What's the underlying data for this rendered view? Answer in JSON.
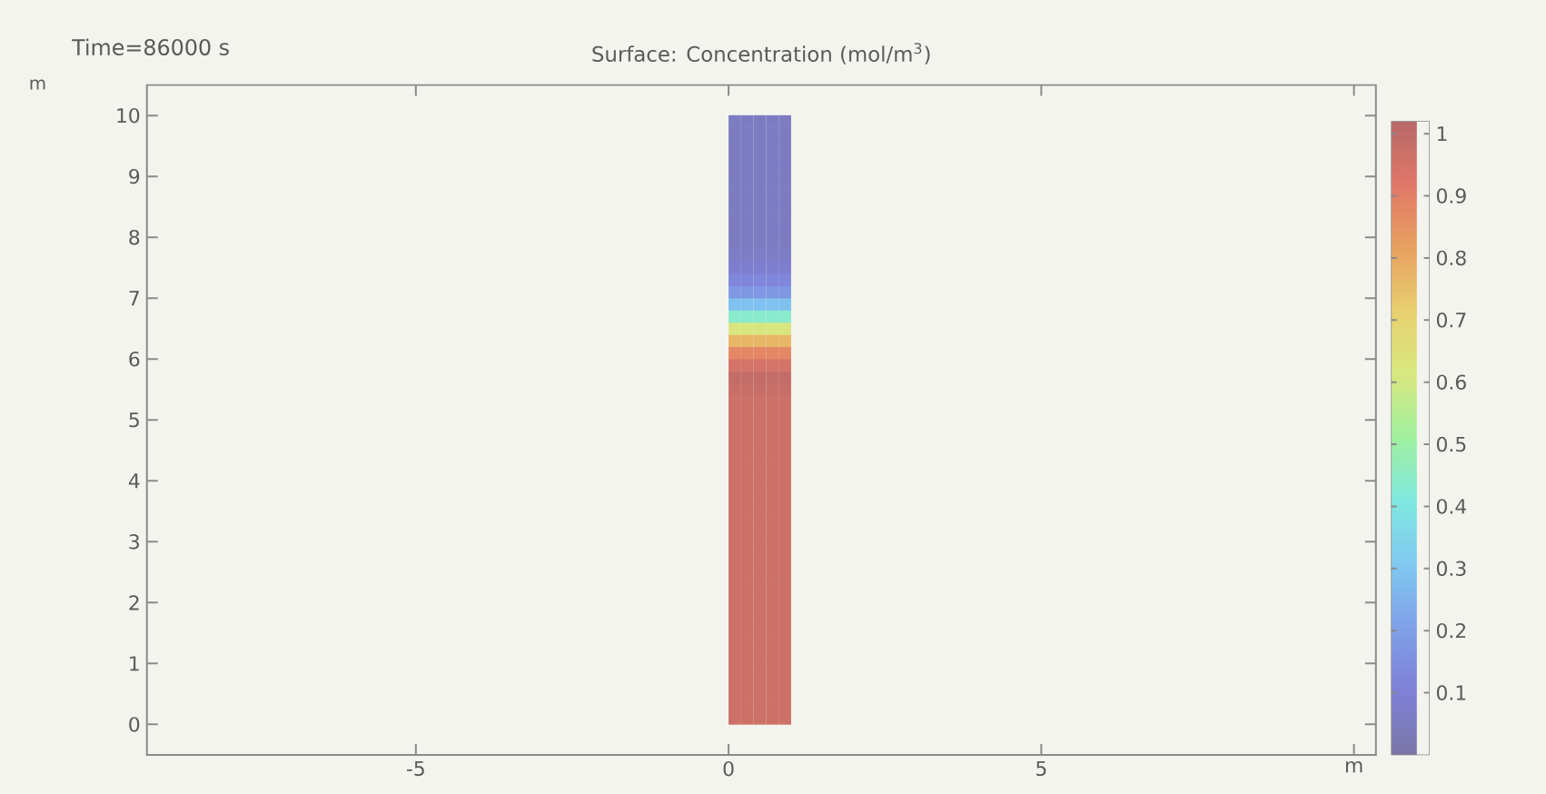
{
  "chart_data": {
    "type": "scatter",
    "title": "Surface: Concentration (mol/m$^{3}$)",
    "annotations": [
      "Time=86000 s"
    ],
    "ylabel": "m",
    "marker": "square",
    "xlim": [
      -9.3,
      10.35
    ],
    "ylim": [
      -0.5,
      10.5
    ],
    "xticks": [
      -5,
      0,
      5,
      {
        "value": 10,
        "label": "m"
      }
    ],
    "yticks": [
      0,
      1,
      2,
      3,
      4,
      5,
      6,
      7,
      8,
      9,
      10
    ],
    "clim": [
      0,
      1.02
    ],
    "cticks": [
      0.1,
      0.2,
      0.3,
      0.4,
      0.5,
      0.6,
      0.7,
      0.8,
      0.9,
      1
    ],
    "x": [
      0.1,
      0.1,
      0.1,
      0.1,
      0.1,
      0.1,
      0.1,
      0.1,
      0.1,
      0.1,
      0.1,
      0.1,
      0.1,
      0.1,
      0.1,
      0.1,
      0.1,
      0.1,
      0.1,
      0.1,
      0.1,
      0.1,
      0.1,
      0.1,
      0.1,
      0.1,
      0.1,
      0.1,
      0.1,
      0.1,
      0.1,
      0.1,
      0.1,
      0.1,
      0.1,
      0.1,
      0.1,
      0.1,
      0.1,
      0.1,
      0.1,
      0.1,
      0.1,
      0.1,
      0.1,
      0.1,
      0.1,
      0.1,
      0.1,
      0.1,
      0.3,
      0.3,
      0.3,
      0.3,
      0.3,
      0.3,
      0.3,
      0.3,
      0.3,
      0.3,
      0.3,
      0.3,
      0.3,
      0.3,
      0.3,
      0.3,
      0.3,
      0.3,
      0.3,
      0.3,
      0.3,
      0.3,
      0.3,
      0.3,
      0.3,
      0.3,
      0.3,
      0.3,
      0.3,
      0.3,
      0.3,
      0.3,
      0.3,
      0.3,
      0.3,
      0.3,
      0.3,
      0.3,
      0.3,
      0.3,
      0.3,
      0.3,
      0.3,
      0.3,
      0.3,
      0.3,
      0.3,
      0.3,
      0.3,
      0.3,
      0.5,
      0.5,
      0.5,
      0.5,
      0.5,
      0.5,
      0.5,
      0.5,
      0.5,
      0.5,
      0.5,
      0.5,
      0.5,
      0.5,
      0.5,
      0.5,
      0.5,
      0.5,
      0.5,
      0.5,
      0.5,
      0.5,
      0.5,
      0.5,
      0.5,
      0.5,
      0.5,
      0.5,
      0.5,
      0.5,
      0.5,
      0.5,
      0.5,
      0.5,
      0.5,
      0.5,
      0.5,
      0.5,
      0.5,
      0.5,
      0.5,
      0.5,
      0.5,
      0.5,
      0.5,
      0.5,
      0.5,
      0.5,
      0.5,
      0.5,
      0.7,
      0.7,
      0.7,
      0.7,
      0.7,
      0.7,
      0.7,
      0.7,
      0.7,
      0.7,
      0.7,
      0.7,
      0.7,
      0.7,
      0.7,
      0.7,
      0.7,
      0.7,
      0.7,
      0.7,
      0.7,
      0.7,
      0.7,
      0.7,
      0.7,
      0.7,
      0.7,
      0.7,
      0.7,
      0.7,
      0.7,
      0.7,
      0.7,
      0.7,
      0.7,
      0.7,
      0.7,
      0.7,
      0.7,
      0.7,
      0.7,
      0.7,
      0.7,
      0.7,
      0.7,
      0.7,
      0.7,
      0.7,
      0.7,
      0.7,
      0.9,
      0.9,
      0.9,
      0.9,
      0.9,
      0.9,
      0.9,
      0.9,
      0.9,
      0.9,
      0.9,
      0.9,
      0.9,
      0.9,
      0.9,
      0.9,
      0.9,
      0.9,
      0.9,
      0.9,
      0.9,
      0.9,
      0.9,
      0.9,
      0.9,
      0.9,
      0.9,
      0.9,
      0.9,
      0.9,
      0.9,
      0.9,
      0.9,
      0.9,
      0.9,
      0.9,
      0.9,
      0.9,
      0.9,
      0.9,
      0.9,
      0.9,
      0.9,
      0.9,
      0.9,
      0.9,
      0.9,
      0.9,
      0.9,
      0.9
    ],
    "values": [
      0.1,
      0.3,
      0.5,
      0.7,
      0.9,
      1.1,
      1.3,
      1.5,
      1.7,
      1.9,
      2.1,
      2.3,
      2.5,
      2.7,
      2.9,
      3.1,
      3.3,
      3.5,
      3.7,
      3.9,
      4.1,
      4.3,
      4.5,
      4.7,
      4.9,
      5.1,
      5.3,
      5.5,
      5.7,
      5.9,
      6.1,
      6.3,
      6.5,
      6.7,
      6.9,
      7.1,
      7.3,
      7.5,
      7.7,
      7.9,
      8.1,
      8.3,
      8.5,
      8.7,
      8.9,
      9.1,
      9.3,
      9.5,
      9.7,
      9.9,
      0.1,
      0.3,
      0.5,
      0.7,
      0.9,
      1.1,
      1.3,
      1.5,
      1.7,
      1.9,
      2.1,
      2.3,
      2.5,
      2.7,
      2.9,
      3.1,
      3.3,
      3.5,
      3.7,
      3.9,
      4.1,
      4.3,
      4.5,
      4.7,
      4.9,
      5.1,
      5.3,
      5.5,
      5.7,
      5.9,
      6.1,
      6.3,
      6.5,
      6.7,
      6.9,
      7.1,
      7.3,
      7.5,
      7.7,
      7.9,
      8.1,
      8.3,
      8.5,
      8.7,
      8.9,
      9.1,
      9.3,
      9.5,
      9.7,
      9.9,
      0.1,
      0.3,
      0.5,
      0.7,
      0.9,
      1.1,
      1.3,
      1.5,
      1.7,
      1.9,
      2.1,
      2.3,
      2.5,
      2.7,
      2.9,
      3.1,
      3.3,
      3.5,
      3.7,
      3.9,
      4.1,
      4.3,
      4.5,
      4.7,
      4.9,
      5.1,
      5.3,
      5.5,
      5.7,
      5.9,
      6.1,
      6.3,
      6.5,
      6.7,
      6.9,
      7.1,
      7.3,
      7.5,
      7.7,
      7.9,
      8.1,
      8.3,
      8.5,
      8.7,
      8.9,
      9.1,
      9.3,
      9.5,
      9.7,
      9.9,
      0.1,
      0.3,
      0.5,
      0.7,
      0.9,
      1.1,
      1.3,
      1.5,
      1.7,
      1.9,
      2.1,
      2.3,
      2.5,
      2.7,
      2.9,
      3.1,
      3.3,
      3.5,
      3.7,
      3.9,
      4.1,
      4.3,
      4.5,
      4.7,
      4.9,
      5.1,
      5.3,
      5.5,
      5.7,
      5.9,
      6.1,
      6.3,
      6.5,
      6.7,
      6.9,
      7.1,
      7.3,
      7.5,
      7.7,
      7.9,
      8.1,
      8.3,
      8.5,
      8.7,
      8.9,
      9.1,
      9.3,
      9.5,
      9.7,
      9.9,
      0.1,
      0.3,
      0.5,
      0.7,
      0.9,
      1.1,
      1.3,
      1.5,
      1.7,
      1.9,
      2.1,
      2.3,
      2.5,
      2.7,
      2.9,
      3.1,
      3.3,
      3.5,
      3.7,
      3.9,
      4.1,
      4.3,
      4.5,
      4.7,
      4.9,
      5.1,
      5.3,
      5.5,
      5.7,
      5.9,
      6.1,
      6.3,
      6.5,
      6.7,
      6.9,
      7.1,
      7.3,
      7.5,
      7.7,
      7.9,
      8.1,
      8.3,
      8.5,
      8.7,
      8.9,
      9.1,
      9.3,
      9.5,
      9.7,
      9.9
    ],
    "cvalues": [
      0.97,
      0.97,
      0.97,
      0.97,
      0.97,
      0.97,
      0.97,
      0.97,
      0.97,
      0.97,
      0.97,
      0.97,
      0.97,
      0.97,
      0.97,
      0.97,
      0.97,
      0.97,
      0.97,
      0.97,
      0.97,
      0.97,
      0.97,
      0.97,
      0.97,
      0.97,
      0.97,
      0.98,
      0.99,
      0.95,
      0.88,
      0.77,
      0.62,
      0.44,
      0.29,
      0.18,
      0.12,
      0.085,
      0.07,
      0.06,
      0.06,
      0.06,
      0.06,
      0.06,
      0.06,
      0.06,
      0.06,
      0.06,
      0.06,
      0.06,
      0.97,
      0.97,
      0.97,
      0.97,
      0.97,
      0.97,
      0.97,
      0.97,
      0.97,
      0.97,
      0.97,
      0.97,
      0.97,
      0.97,
      0.97,
      0.97,
      0.97,
      0.97,
      0.97,
      0.97,
      0.97,
      0.97,
      0.97,
      0.97,
      0.97,
      0.97,
      0.97,
      0.98,
      0.99,
      0.95,
      0.88,
      0.77,
      0.62,
      0.44,
      0.29,
      0.18,
      0.12,
      0.085,
      0.07,
      0.06,
      0.06,
      0.06,
      0.06,
      0.06,
      0.06,
      0.06,
      0.06,
      0.06,
      0.06,
      0.06,
      0.97,
      0.97,
      0.97,
      0.97,
      0.97,
      0.97,
      0.97,
      0.97,
      0.97,
      0.97,
      0.97,
      0.97,
      0.97,
      0.97,
      0.97,
      0.97,
      0.97,
      0.97,
      0.97,
      0.97,
      0.97,
      0.97,
      0.97,
      0.97,
      0.97,
      0.97,
      0.97,
      0.98,
      0.99,
      0.95,
      0.88,
      0.77,
      0.62,
      0.44,
      0.29,
      0.18,
      0.12,
      0.085,
      0.07,
      0.06,
      0.06,
      0.06,
      0.06,
      0.06,
      0.06,
      0.06,
      0.06,
      0.06,
      0.06,
      0.06,
      0.97,
      0.97,
      0.97,
      0.97,
      0.97,
      0.97,
      0.97,
      0.97,
      0.97,
      0.97,
      0.97,
      0.97,
      0.97,
      0.97,
      0.97,
      0.97,
      0.97,
      0.97,
      0.97,
      0.97,
      0.97,
      0.97,
      0.97,
      0.97,
      0.97,
      0.97,
      0.97,
      0.98,
      0.99,
      0.95,
      0.88,
      0.77,
      0.62,
      0.44,
      0.29,
      0.18,
      0.12,
      0.085,
      0.07,
      0.06,
      0.06,
      0.06,
      0.06,
      0.06,
      0.06,
      0.06,
      0.06,
      0.06,
      0.06,
      0.06,
      0.97,
      0.97,
      0.97,
      0.97,
      0.97,
      0.97,
      0.97,
      0.97,
      0.97,
      0.97,
      0.97,
      0.97,
      0.97,
      0.97,
      0.97,
      0.97,
      0.97,
      0.97,
      0.97,
      0.97,
      0.97,
      0.97,
      0.97,
      0.97,
      0.97,
      0.97,
      0.97,
      0.98,
      0.99,
      0.95,
      0.88,
      0.77,
      0.62,
      0.44,
      0.29,
      0.18,
      0.12,
      0.085,
      0.07,
      0.06,
      0.06,
      0.06,
      0.06,
      0.06,
      0.06,
      0.06,
      0.06,
      0.06,
      0.06,
      0.06
    ]
  }
}
